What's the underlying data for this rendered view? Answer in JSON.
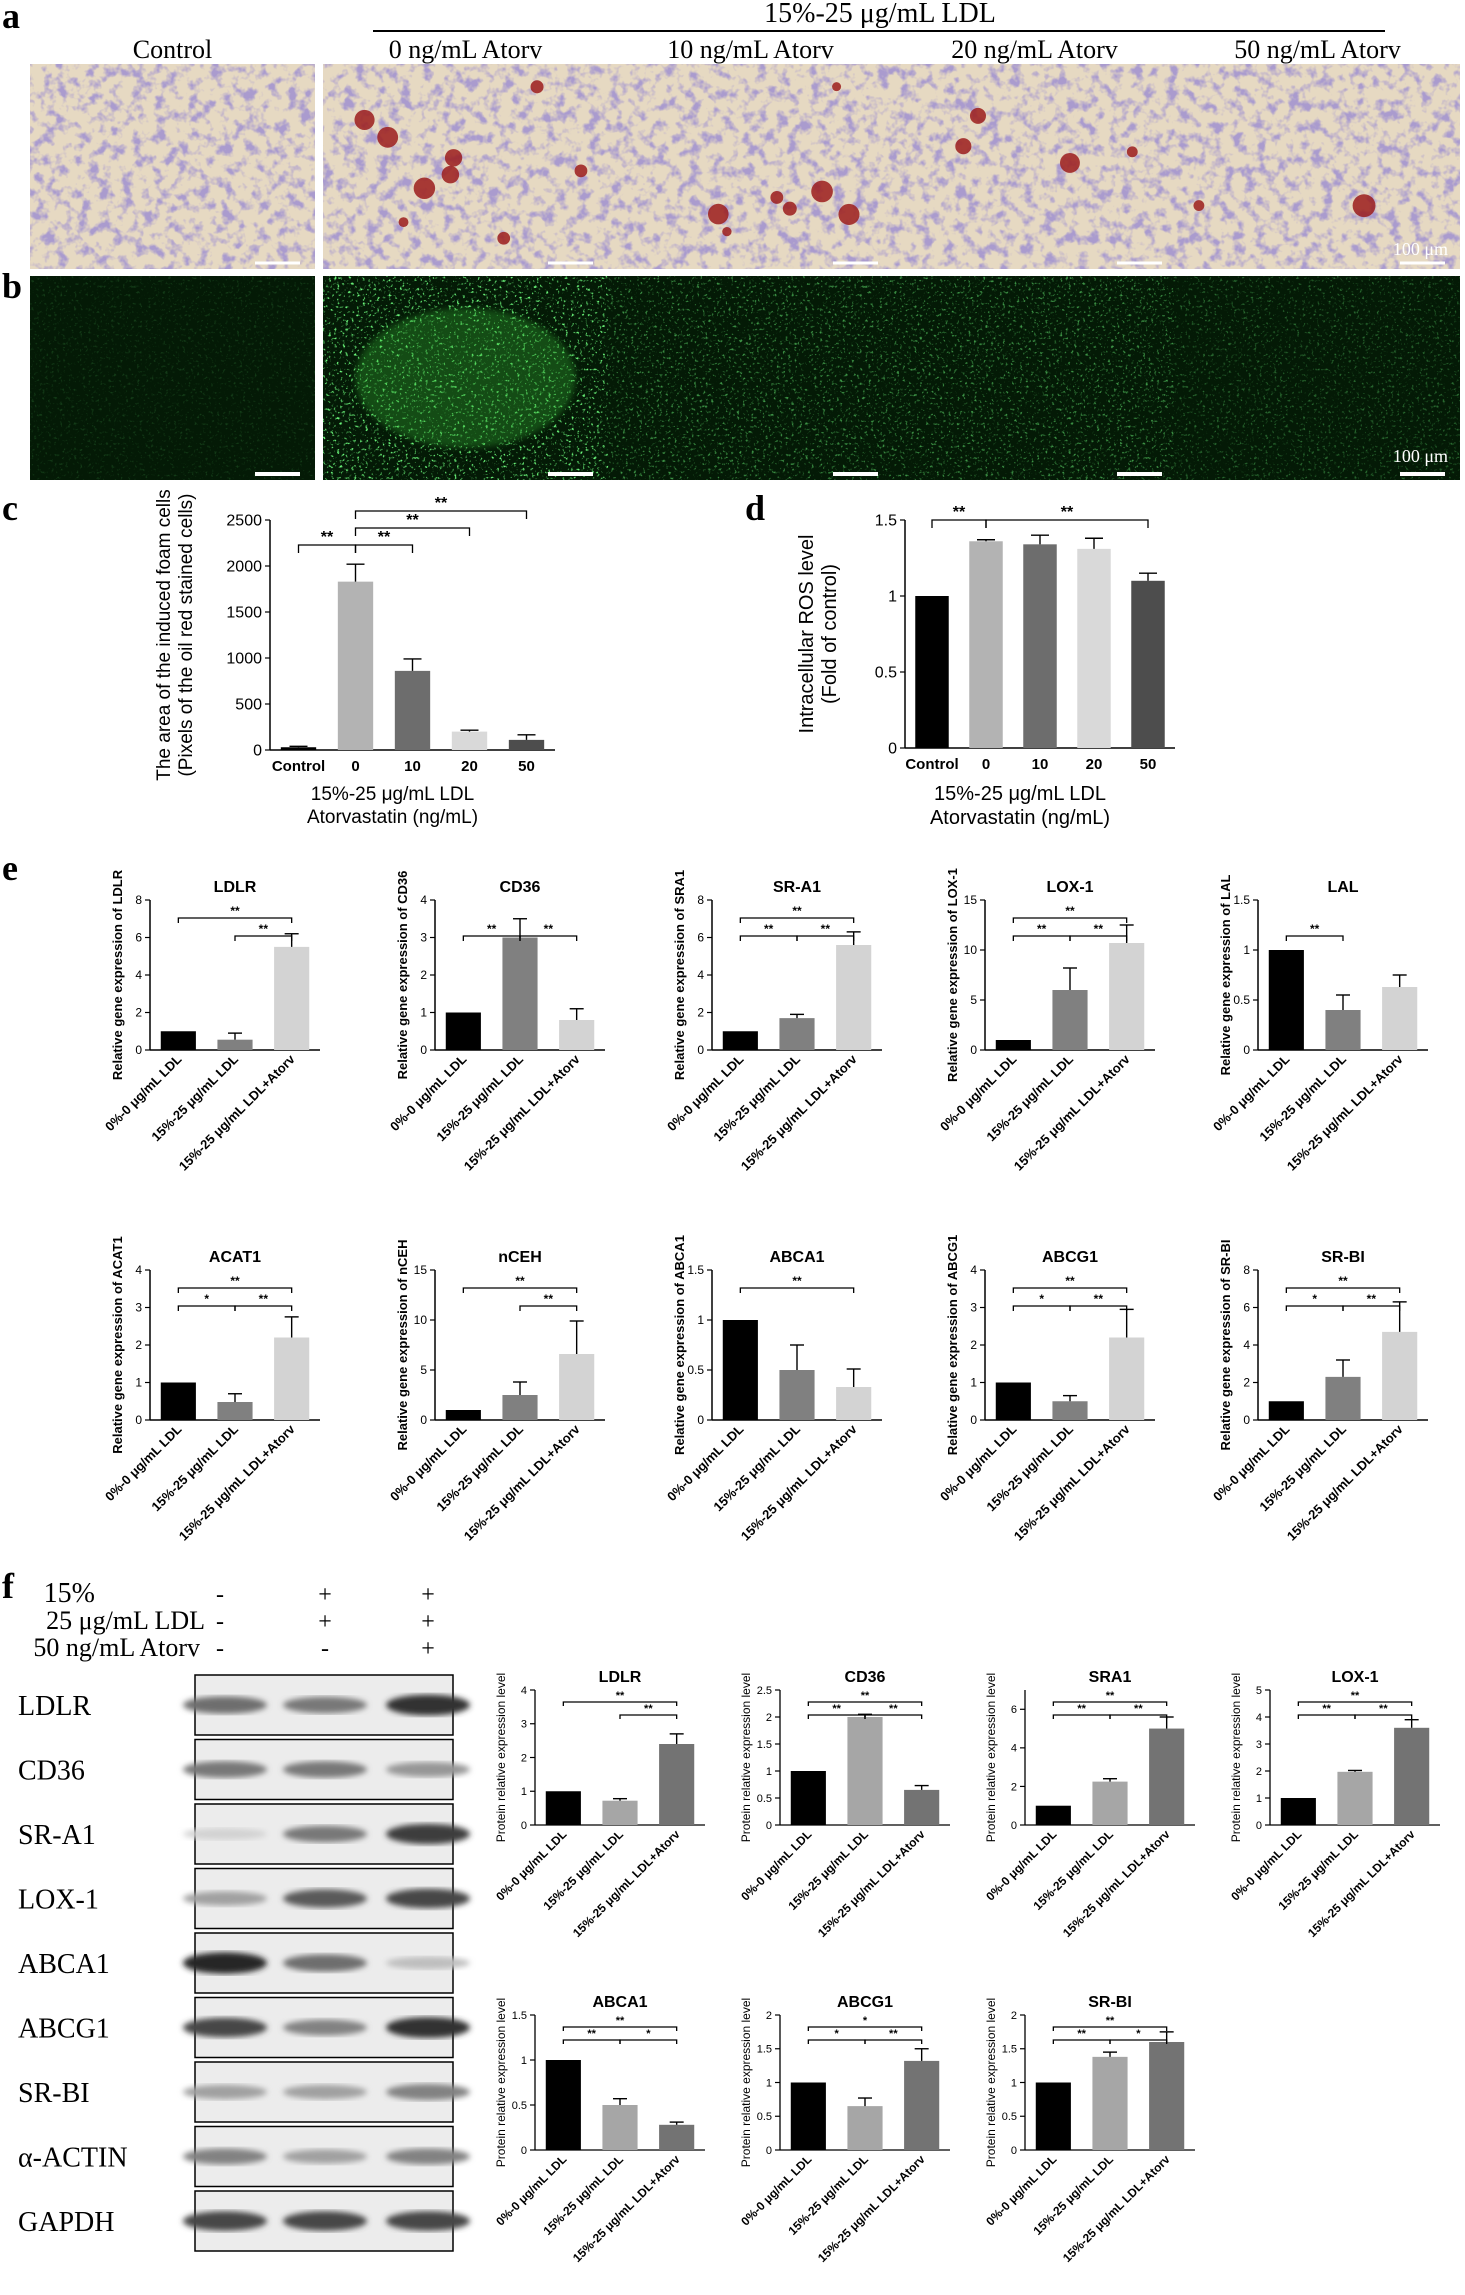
{
  "panel_labels": {
    "a": "a",
    "b": "b",
    "c": "c",
    "d": "d",
    "e": "e",
    "f": "f"
  },
  "micro": {
    "group_header": "15%-25 μg/mL  LDL",
    "columns": [
      "Control",
      "0 ng/mL Atorv",
      "10 ng/mL Atorv",
      "20 ng/mL Atorv",
      "50 ng/mL Atorv"
    ],
    "scale_a": "100 μm",
    "scale_b": "100 μm"
  },
  "chart_data": [
    {
      "id": "c",
      "type": "bar",
      "categories": [
        "Control",
        "0",
        "10",
        "20",
        "50"
      ],
      "values": [
        30,
        1830,
        860,
        200,
        110
      ],
      "errors": [
        10,
        190,
        130,
        15,
        55
      ],
      "colors": [
        "#000000",
        "#b3b3b3",
        "#6d6d6d",
        "#d9d9d9",
        "#4d4d4d"
      ],
      "ylim": [
        0,
        2500
      ],
      "yticks": [
        0,
        500,
        1000,
        1500,
        2000,
        2500
      ],
      "ylabel": [
        "The area of the induced foam cells",
        "(Pixels of the oil red stained cells)"
      ],
      "xlabel": [
        "15%-25 μg/mL LDL",
        "Atorvastatin (ng/mL)"
      ],
      "sig": [
        {
          "from": 0,
          "to": 1,
          "level": 0,
          "label": "**"
        },
        {
          "from": 1,
          "to": 2,
          "level": 0,
          "label": "**"
        },
        {
          "from": 1,
          "to": 3,
          "level": 1,
          "label": "**"
        },
        {
          "from": 1,
          "to": 4,
          "level": 2,
          "label": "**"
        }
      ]
    },
    {
      "id": "d",
      "type": "bar",
      "categories": [
        "Control",
        "0",
        "10",
        "20",
        "50"
      ],
      "values": [
        1.0,
        1.36,
        1.34,
        1.31,
        1.1
      ],
      "errors": [
        0.0,
        0.01,
        0.06,
        0.07,
        0.05
      ],
      "colors": [
        "#000000",
        "#b3b3b3",
        "#6d6d6d",
        "#d9d9d9",
        "#4d4d4d"
      ],
      "ylim": [
        0,
        1.5
      ],
      "yticks": [
        0.0,
        0.5,
        1.0,
        1.5
      ],
      "ylabel": [
        "Intracellular ROS level",
        "(Fold of control)"
      ],
      "xlabel": [
        "15%-25 μg/mL LDL",
        "Atorvastatin (ng/mL)"
      ],
      "sig": [
        {
          "from": 0,
          "to": 1,
          "level": 0,
          "label": "**"
        },
        {
          "from": 1,
          "to": 4,
          "level": 0,
          "label": "**"
        }
      ]
    }
  ],
  "gene_charts": {
    "categories": [
      "0%-0 μg/mL LDL",
      "15%-25 μg/mL LDL",
      "15%-25 μg/mL LDL+Atorv"
    ],
    "ylabel_prefix": "Relative gene expression of ",
    "colors": [
      "#000000",
      "#808080",
      "#d3d3d3"
    ],
    "charts": [
      {
        "title": "LDLR",
        "ylabel": "LDLR",
        "values": [
          1.0,
          0.55,
          5.5
        ],
        "errors": [
          0,
          0.35,
          0.7
        ],
        "ylim": [
          0,
          8
        ],
        "yticks": [
          0,
          2,
          4,
          6,
          8
        ],
        "sig": [
          {
            "from": 0,
            "to": 2,
            "level": 1,
            "label": "**"
          },
          {
            "from": 1,
            "to": 2,
            "level": 0,
            "label": "**"
          }
        ]
      },
      {
        "title": "CD36",
        "ylabel": "CD36",
        "values": [
          1.0,
          3.0,
          0.8
        ],
        "errors": [
          0,
          0.5,
          0.3
        ],
        "ylim": [
          0,
          4
        ],
        "yticks": [
          0,
          1,
          2,
          3,
          4
        ],
        "sig": [
          {
            "from": 0,
            "to": 1,
            "level": 0,
            "label": "**"
          },
          {
            "from": 1,
            "to": 2,
            "level": 0,
            "label": "**"
          }
        ]
      },
      {
        "title": "SR-A1",
        "ylabel": "SRA1",
        "values": [
          1.0,
          1.7,
          5.6
        ],
        "errors": [
          0,
          0.2,
          0.7
        ],
        "ylim": [
          0,
          8
        ],
        "yticks": [
          0,
          2,
          4,
          6,
          8
        ],
        "sig": [
          {
            "from": 0,
            "to": 1,
            "level": 0,
            "label": "**"
          },
          {
            "from": 1,
            "to": 2,
            "level": 0,
            "label": "**"
          },
          {
            "from": 0,
            "to": 2,
            "level": 1,
            "label": "**"
          }
        ]
      },
      {
        "title": "LOX-1",
        "ylabel": "LOX-1",
        "values": [
          1.0,
          6.0,
          10.7
        ],
        "errors": [
          0,
          2.2,
          1.8
        ],
        "ylim": [
          0,
          15
        ],
        "yticks": [
          0,
          5,
          10,
          15
        ],
        "sig": [
          {
            "from": 0,
            "to": 1,
            "level": 0,
            "label": "**"
          },
          {
            "from": 1,
            "to": 2,
            "level": 0,
            "label": "**"
          },
          {
            "from": 0,
            "to": 2,
            "level": 1,
            "label": "**"
          }
        ]
      },
      {
        "title": "LAL",
        "ylabel": "LAL",
        "values": [
          1.0,
          0.4,
          0.63
        ],
        "errors": [
          0,
          0.15,
          0.12
        ],
        "ylim": [
          0,
          1.5
        ],
        "yticks": [
          0.0,
          0.5,
          1.0,
          1.5
        ],
        "sig": [
          {
            "from": 0,
            "to": 1,
            "level": 0,
            "label": "**"
          }
        ]
      },
      {
        "title": "ACAT1",
        "ylabel": "ACAT1",
        "values": [
          1.0,
          0.48,
          2.2
        ],
        "errors": [
          0,
          0.22,
          0.55
        ],
        "ylim": [
          0,
          4
        ],
        "yticks": [
          0,
          1,
          2,
          3,
          4
        ],
        "sig": [
          {
            "from": 0,
            "to": 1,
            "level": 0,
            "label": "*"
          },
          {
            "from": 1,
            "to": 2,
            "level": 0,
            "label": "**"
          },
          {
            "from": 0,
            "to": 2,
            "level": 1,
            "label": "**"
          }
        ]
      },
      {
        "title": "nCEH",
        "ylabel": "nCEH",
        "values": [
          1.0,
          2.5,
          6.6
        ],
        "errors": [
          0,
          1.3,
          3.3
        ],
        "ylim": [
          0,
          15
        ],
        "yticks": [
          0,
          5,
          10,
          15
        ],
        "sig": [
          {
            "from": 1,
            "to": 2,
            "level": 0,
            "label": "**"
          },
          {
            "from": 0,
            "to": 2,
            "level": 1,
            "label": "**"
          }
        ]
      },
      {
        "title": "ABCA1",
        "ylabel": "ABCA1",
        "values": [
          1.0,
          0.5,
          0.33
        ],
        "errors": [
          0,
          0.25,
          0.18
        ],
        "ylim": [
          0,
          1.5
        ],
        "yticks": [
          0.0,
          0.5,
          1.0,
          1.5
        ],
        "sig": [
          {
            "from": 0,
            "to": 2,
            "level": 1,
            "label": "**"
          }
        ]
      },
      {
        "title": "ABCG1",
        "ylabel": "ABCG1",
        "values": [
          1.0,
          0.5,
          2.2
        ],
        "errors": [
          0,
          0.15,
          0.75
        ],
        "ylim": [
          0,
          4
        ],
        "yticks": [
          0,
          1,
          2,
          3,
          4
        ],
        "sig": [
          {
            "from": 0,
            "to": 1,
            "level": 0,
            "label": "*"
          },
          {
            "from": 1,
            "to": 2,
            "level": 0,
            "label": "**"
          },
          {
            "from": 0,
            "to": 2,
            "level": 1,
            "label": "**"
          }
        ]
      },
      {
        "title": "SR-BI",
        "ylabel": "SR-BI",
        "values": [
          1.0,
          2.3,
          4.7
        ],
        "errors": [
          0,
          0.9,
          1.6
        ],
        "ylim": [
          0,
          8
        ],
        "yticks": [
          0,
          2,
          4,
          6,
          8
        ],
        "sig": [
          {
            "from": 0,
            "to": 1,
            "level": 0,
            "label": "*"
          },
          {
            "from": 1,
            "to": 2,
            "level": 0,
            "label": "**"
          },
          {
            "from": 0,
            "to": 2,
            "level": 1,
            "label": "**"
          }
        ]
      }
    ]
  },
  "protein_charts": {
    "categories": [
      "0%-0 μg/mL LDL",
      "15%-25 μg/mL LDL",
      "15%-25 μg/mL LDL+Atorv"
    ],
    "ylabel": "Protein relative expression level",
    "colors": [
      "#000000",
      "#a6a6a6",
      "#737373"
    ],
    "charts": [
      {
        "title": "LDLR",
        "values": [
          1.0,
          0.72,
          2.4
        ],
        "errors": [
          0,
          0.06,
          0.3
        ],
        "ylim": [
          0,
          4
        ],
        "yticks": [
          0,
          1,
          2,
          3,
          4
        ],
        "sig": [
          {
            "from": 1,
            "to": 2,
            "level": 0,
            "label": "**"
          },
          {
            "from": 0,
            "to": 2,
            "level": 1,
            "label": "**"
          }
        ]
      },
      {
        "title": "CD36",
        "values": [
          1.0,
          2.0,
          0.65
        ],
        "errors": [
          0,
          0.05,
          0.08
        ],
        "ylim": [
          0,
          2.5
        ],
        "yticks": [
          0.0,
          0.5,
          1.0,
          1.5,
          2.0,
          2.5
        ],
        "sig": [
          {
            "from": 0,
            "to": 1,
            "level": 0,
            "label": "**"
          },
          {
            "from": 1,
            "to": 2,
            "level": 0,
            "label": "**"
          },
          {
            "from": 0,
            "to": 2,
            "level": 1,
            "label": "**"
          }
        ]
      },
      {
        "title": "SRA1",
        "values": [
          1.0,
          2.25,
          5.0
        ],
        "errors": [
          0,
          0.15,
          0.6
        ],
        "ylim": [
          0,
          7
        ],
        "yticks": [
          0,
          2,
          4,
          6
        ],
        "sig": [
          {
            "from": 0,
            "to": 1,
            "level": 0,
            "label": "**"
          },
          {
            "from": 1,
            "to": 2,
            "level": 0,
            "label": "**"
          },
          {
            "from": 0,
            "to": 2,
            "level": 1,
            "label": "**"
          }
        ]
      },
      {
        "title": "LOX-1",
        "values": [
          1.0,
          1.97,
          3.6
        ],
        "errors": [
          0,
          0.05,
          0.3
        ],
        "ylim": [
          0,
          5
        ],
        "yticks": [
          0,
          1,
          2,
          3,
          4,
          5
        ],
        "sig": [
          {
            "from": 0,
            "to": 1,
            "level": 0,
            "label": "**"
          },
          {
            "from": 1,
            "to": 2,
            "level": 0,
            "label": "**"
          },
          {
            "from": 0,
            "to": 2,
            "level": 1,
            "label": "**"
          }
        ]
      },
      {
        "title": "ABCA1",
        "values": [
          1.0,
          0.5,
          0.28
        ],
        "errors": [
          0,
          0.07,
          0.03
        ],
        "ylim": [
          0,
          1.5
        ],
        "yticks": [
          0.0,
          0.5,
          1.0,
          1.5
        ],
        "sig": [
          {
            "from": 0,
            "to": 1,
            "level": 0,
            "label": "**"
          },
          {
            "from": 1,
            "to": 2,
            "level": 0,
            "label": "*"
          },
          {
            "from": 0,
            "to": 2,
            "level": 1,
            "label": "**"
          }
        ]
      },
      {
        "title": "ABCG1",
        "values": [
          1.0,
          0.65,
          1.32
        ],
        "errors": [
          0,
          0.12,
          0.18
        ],
        "ylim": [
          0,
          2.0
        ],
        "yticks": [
          0.0,
          0.5,
          1.0,
          1.5,
          2.0
        ],
        "sig": [
          {
            "from": 0,
            "to": 1,
            "level": 0,
            "label": "*"
          },
          {
            "from": 1,
            "to": 2,
            "level": 0,
            "label": "**"
          },
          {
            "from": 0,
            "to": 2,
            "level": 1,
            "label": "*"
          }
        ]
      },
      {
        "title": "SR-BI",
        "values": [
          1.0,
          1.38,
          1.6
        ],
        "errors": [
          0,
          0.07,
          0.15
        ],
        "ylim": [
          0,
          2.0
        ],
        "yticks": [
          0.0,
          0.5,
          1.0,
          1.5,
          2.0
        ],
        "sig": [
          {
            "from": 0,
            "to": 1,
            "level": 0,
            "label": "**"
          },
          {
            "from": 1,
            "to": 2,
            "level": 0,
            "label": "*"
          },
          {
            "from": 0,
            "to": 2,
            "level": 1,
            "label": "**"
          }
        ]
      }
    ]
  },
  "blot": {
    "conditions": [
      {
        "label": "15%",
        "marks": [
          "-",
          "+",
          "+"
        ]
      },
      {
        "label": "25 μg/mL LDL",
        "marks": [
          "-",
          "+",
          "+"
        ]
      },
      {
        "label": "50 ng/mL Atorv",
        "marks": [
          "-",
          "-",
          "+"
        ]
      }
    ],
    "rows": [
      {
        "label": "LDLR",
        "bands": [
          0.6,
          0.55,
          0.9
        ]
      },
      {
        "label": "CD36",
        "bands": [
          0.55,
          0.55,
          0.4
        ]
      },
      {
        "label": "SR-A1",
        "bands": [
          0.1,
          0.55,
          0.85
        ]
      },
      {
        "label": "LOX-1",
        "bands": [
          0.35,
          0.7,
          0.8
        ]
      },
      {
        "label": "ABCA1",
        "bands": [
          0.95,
          0.6,
          0.2
        ]
      },
      {
        "label": "ABCG1",
        "bands": [
          0.8,
          0.5,
          0.9
        ]
      },
      {
        "label": "SR-BI",
        "bands": [
          0.35,
          0.35,
          0.5
        ]
      },
      {
        "label": "α-ACTIN",
        "bands": [
          0.5,
          0.35,
          0.5
        ]
      },
      {
        "label": "GAPDH",
        "bands": [
          0.8,
          0.8,
          0.8
        ]
      }
    ]
  }
}
